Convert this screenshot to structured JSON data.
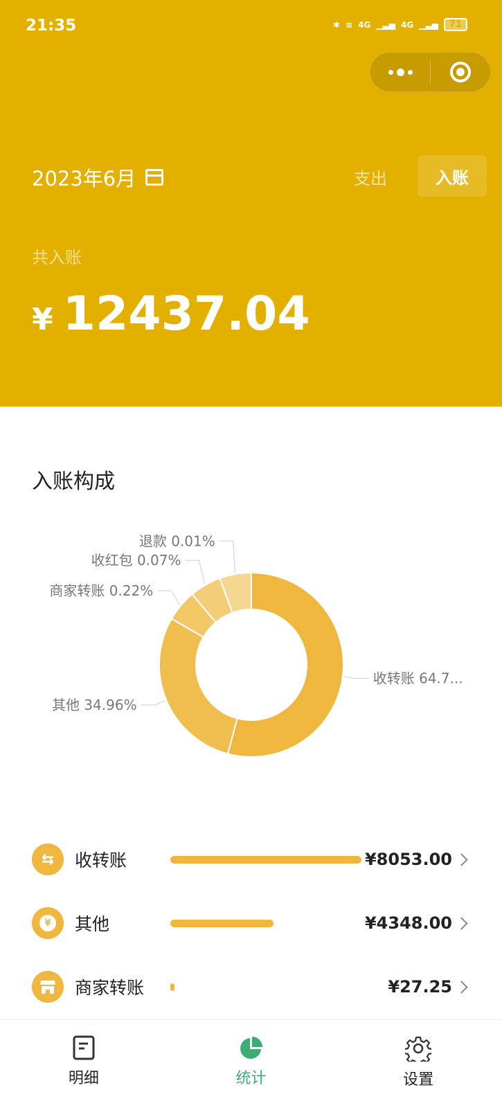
{
  "status_bar": {
    "time": "21:35",
    "battery": "71",
    "network": [
      "4G",
      "4G"
    ]
  },
  "header": {
    "month": "2023年6月",
    "tabs": [
      {
        "label": "支出",
        "active": false
      },
      {
        "label": "入账",
        "active": true
      }
    ],
    "total_label": "共入账",
    "currency": "¥",
    "total": "12437.04",
    "bg_color": "#E3B000"
  },
  "section_title": "入账构成",
  "chart_data": {
    "type": "pie",
    "donut": true,
    "title": "入账构成",
    "labels": [
      "收转账 64.7...",
      "其他 34.96%",
      "商家转账 0.22%",
      "收红包 0.07%",
      "退款 0.01%"
    ],
    "categories": [
      "收转账",
      "其他",
      "商家转账",
      "收红包",
      "退款"
    ],
    "values": [
      64.74,
      34.96,
      0.22,
      0.07,
      0.01
    ],
    "colors": [
      "#EFB73E",
      "#F0BE4E",
      "#F2C766",
      "#F4CD78",
      "#F6D791"
    ]
  },
  "list": [
    {
      "name": "收转账",
      "amount": "¥8053.00",
      "icon": "transfer-icon",
      "fraction": 1.0
    },
    {
      "name": "其他",
      "amount": "¥4348.00",
      "icon": "yuan-coin-icon",
      "fraction": 0.54
    },
    {
      "name": "商家转账",
      "amount": "¥27.25",
      "icon": "shop-icon",
      "fraction": 0.0034
    }
  ],
  "nav": [
    {
      "label": "明细",
      "icon": "document-icon"
    },
    {
      "label": "统计",
      "icon": "pie-chart-icon",
      "active": true
    },
    {
      "label": "设置",
      "icon": "gear-icon"
    }
  ],
  "accent_color": "#3DAE73"
}
